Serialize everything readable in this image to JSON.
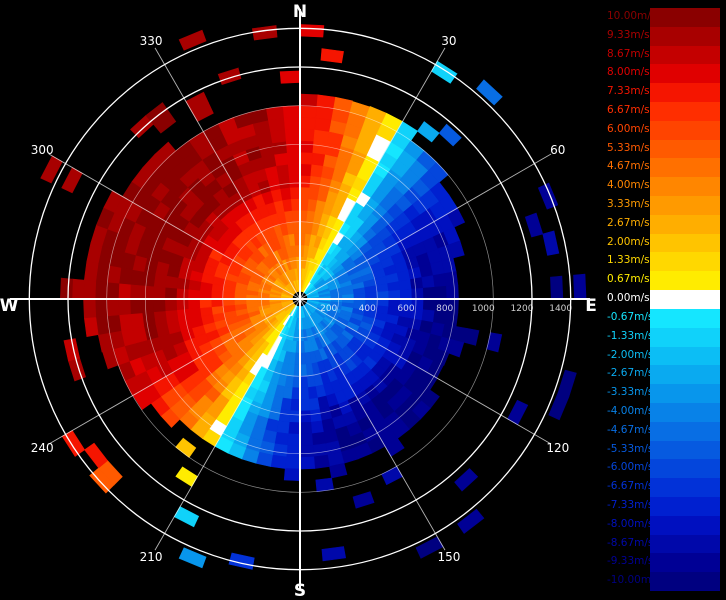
{
  "chart_data": {
    "type": "polar-heatmap",
    "title": "",
    "compass": {
      "north": "N",
      "east": "E",
      "south": "S",
      "west": "W"
    },
    "azimuth_labels": [
      "30",
      "60",
      "120",
      "150",
      "210",
      "240",
      "300",
      "330"
    ],
    "range_labels": [
      "200",
      "400",
      "600",
      "800",
      "1000",
      "1200",
      "1400"
    ],
    "rings": [
      200,
      400,
      600,
      800,
      1000,
      1200,
      1400
    ],
    "rmax": 1500,
    "center_hole": 40,
    "velocity_field": {
      "description_units": "m/s",
      "pattern": "dipole",
      "max_abs": 10,
      "inbound_direction_deg": 120,
      "outbound_direction_deg": 290,
      "inner_coverage_range": 1000,
      "sparse_outer_range": 1450
    },
    "legend": {
      "entries": [
        {
          "label": "10.00m/s",
          "value": 10.0,
          "color": "#8a0000"
        },
        {
          "label": "9.33m/s",
          "value": 9.33,
          "color": "#a80000"
        },
        {
          "label": "8.67m/s",
          "value": 8.67,
          "color": "#c40000"
        },
        {
          "label": "8.00m/s",
          "value": 8.0,
          "color": "#e00000"
        },
        {
          "label": "7.33m/s",
          "value": 7.33,
          "color": "#f51500"
        },
        {
          "label": "6.67m/s",
          "value": 6.67,
          "color": "#ff2e00"
        },
        {
          "label": "6.00m/s",
          "value": 6.0,
          "color": "#ff4400"
        },
        {
          "label": "5.33m/s",
          "value": 5.33,
          "color": "#ff5a00"
        },
        {
          "label": "4.67m/s",
          "value": 4.67,
          "color": "#ff7000"
        },
        {
          "label": "4.00m/s",
          "value": 4.0,
          "color": "#ff8600"
        },
        {
          "label": "3.33m/s",
          "value": 3.33,
          "color": "#ff9a00"
        },
        {
          "label": "2.67m/s",
          "value": 2.67,
          "color": "#ffae00"
        },
        {
          "label": "2.00m/s",
          "value": 2.0,
          "color": "#ffc400"
        },
        {
          "label": "1.33m/s",
          "value": 1.33,
          "color": "#ffd800"
        },
        {
          "label": "0.67m/s",
          "value": 0.67,
          "color": "#ffec00"
        },
        {
          "label": "0.00m/s",
          "value": 0.0,
          "color": "#ffffff"
        },
        {
          "label": "-0.67m/s",
          "value": -0.67,
          "color": "#15e6ff"
        },
        {
          "label": "-1.33m/s",
          "value": -1.33,
          "color": "#10d2fa"
        },
        {
          "label": "-2.00m/s",
          "value": -2.0,
          "color": "#0cbef5"
        },
        {
          "label": "-2.67m/s",
          "value": -2.67,
          "color": "#0aaaf0"
        },
        {
          "label": "-3.33m/s",
          "value": -3.33,
          "color": "#0896ec"
        },
        {
          "label": "-4.00m/s",
          "value": -4.0,
          "color": "#0882e8"
        },
        {
          "label": "-4.67m/s",
          "value": -4.67,
          "color": "#086ee4"
        },
        {
          "label": "-5.33m/s",
          "value": -5.33,
          "color": "#065ae0"
        },
        {
          "label": "-6.00m/s",
          "value": -6.0,
          "color": "#0446dc"
        },
        {
          "label": "-6.67m/s",
          "value": -6.67,
          "color": "#0232d8"
        },
        {
          "label": "-7.33m/s",
          "value": -7.33,
          "color": "#0020d0"
        },
        {
          "label": "-8.00m/s",
          "value": -8.0,
          "color": "#0010c0"
        },
        {
          "label": "-8.67m/s",
          "value": -8.67,
          "color": "#0008aa"
        },
        {
          "label": "-9.33m/s",
          "value": -9.33,
          "color": "#000095"
        },
        {
          "label": "-10.00m/s",
          "value": -10.0,
          "color": "#000080"
        }
      ]
    }
  }
}
